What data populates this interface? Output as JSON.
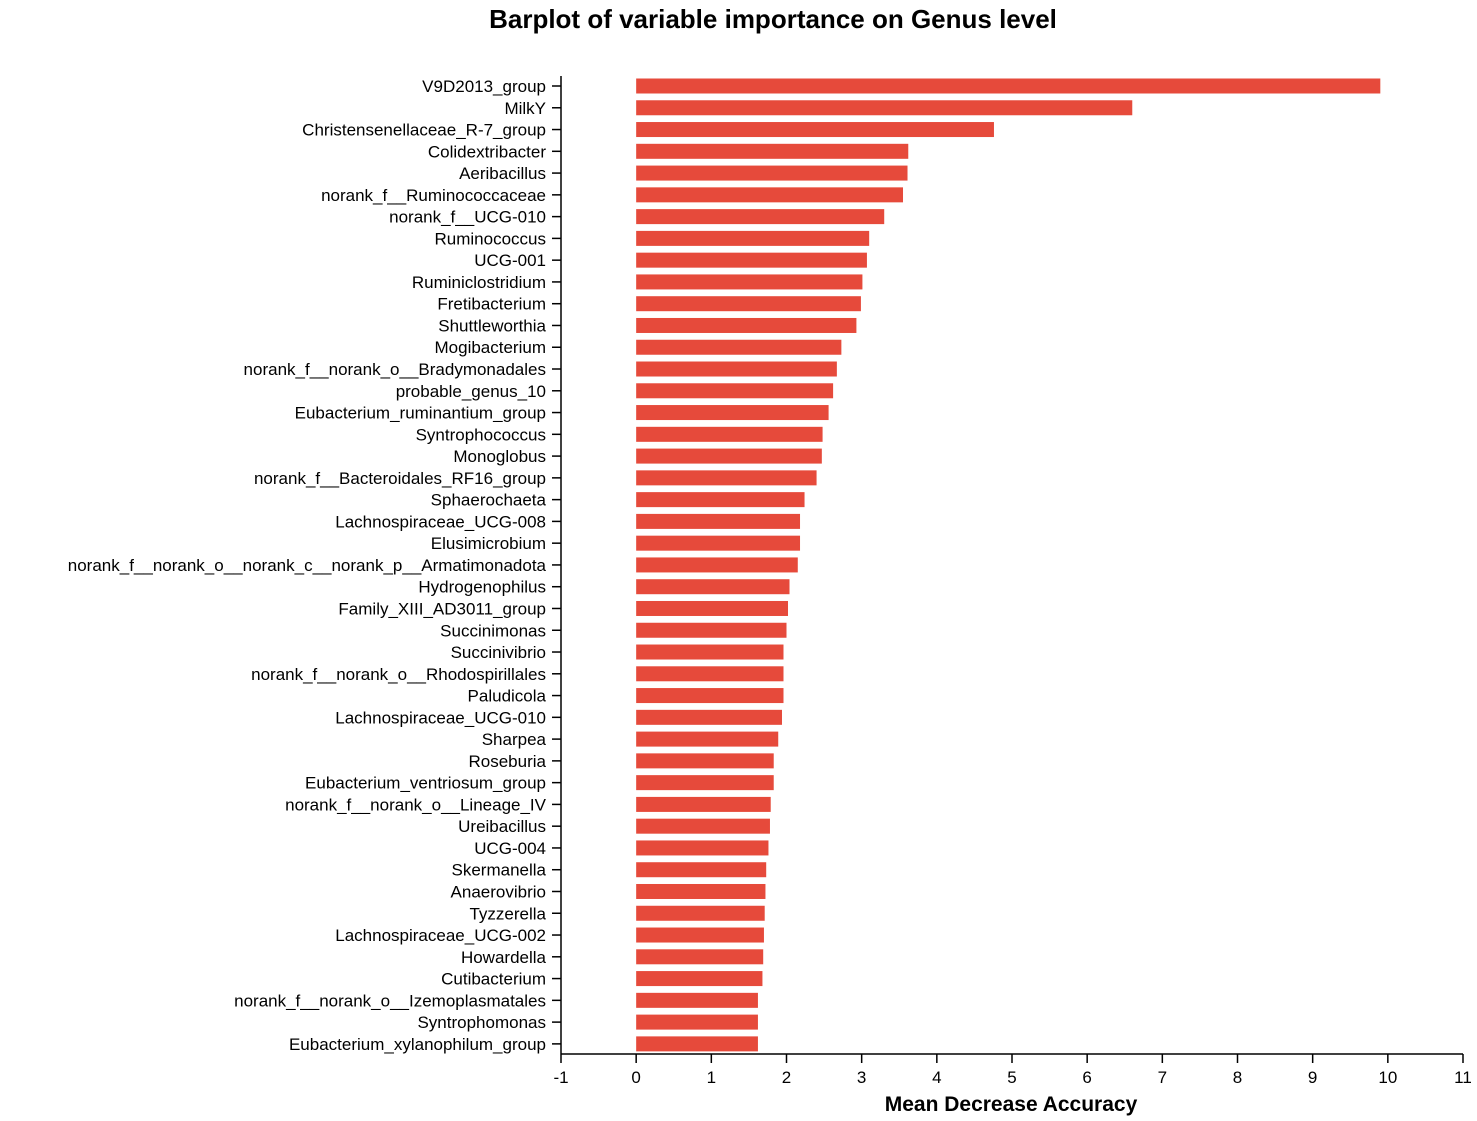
{
  "chart_data": {
    "type": "bar",
    "orientation": "horizontal",
    "title": "Barplot of variable importance on Genus level",
    "xlabel": "Mean Decrease Accuracy",
    "ylabel": "",
    "xlim": [
      -1,
      11
    ],
    "xticks": [
      "-1",
      "0",
      "1",
      "2",
      "3",
      "4",
      "5",
      "6",
      "7",
      "8",
      "9",
      "10",
      "11"
    ],
    "bar_color": "#e64a3b",
    "grid": false,
    "categories": [
      "V9D2013_group",
      "MilkY",
      "Christensenellaceae_R-7_group",
      "Colidextribacter",
      "Aeribacillus",
      "norank_f__Ruminococcaceae",
      "norank_f__UCG-010",
      "Ruminococcus",
      "UCG-001",
      "Ruminiclostridium",
      "Fretibacterium",
      "Shuttleworthia",
      "Mogibacterium",
      "norank_f__norank_o__Bradymonadales",
      "probable_genus_10",
      "Eubacterium_ruminantium_group",
      "Syntrophococcus",
      "Monoglobus",
      "norank_f__Bacteroidales_RF16_group",
      "Sphaerochaeta",
      "Lachnospiraceae_UCG-008",
      "Elusimicrobium",
      "norank_f__norank_o__norank_c__norank_p__Armatimonadota",
      "Hydrogenophilus",
      "Family_XIII_AD3011_group",
      "Succinimonas",
      "Succinivibrio",
      "norank_f__norank_o__Rhodospirillales",
      "Paludicola",
      "Lachnospiraceae_UCG-010",
      "Sharpea",
      "Roseburia",
      "Eubacterium_ventriosum_group",
      "norank_f__norank_o__Lineage_IV",
      "Ureibacillus",
      "UCG-004",
      "Skermanella",
      "Anaerovibrio",
      "Tyzzerella",
      "Lachnospiraceae_UCG-002",
      "Howardella",
      "Cutibacterium",
      "norank_f__norank_o__Izemoplasmatales",
      "Syntrophomonas",
      "Eubacterium_xylanophilum_group"
    ],
    "values": [
      9.9,
      6.6,
      4.76,
      3.62,
      3.61,
      3.55,
      3.3,
      3.1,
      3.07,
      3.01,
      2.99,
      2.93,
      2.73,
      2.67,
      2.62,
      2.56,
      2.48,
      2.47,
      2.4,
      2.24,
      2.18,
      2.18,
      2.15,
      2.04,
      2.02,
      2.0,
      1.96,
      1.96,
      1.96,
      1.94,
      1.89,
      1.83,
      1.83,
      1.79,
      1.78,
      1.76,
      1.73,
      1.72,
      1.71,
      1.7,
      1.69,
      1.68,
      1.62,
      1.62,
      1.62
    ]
  }
}
